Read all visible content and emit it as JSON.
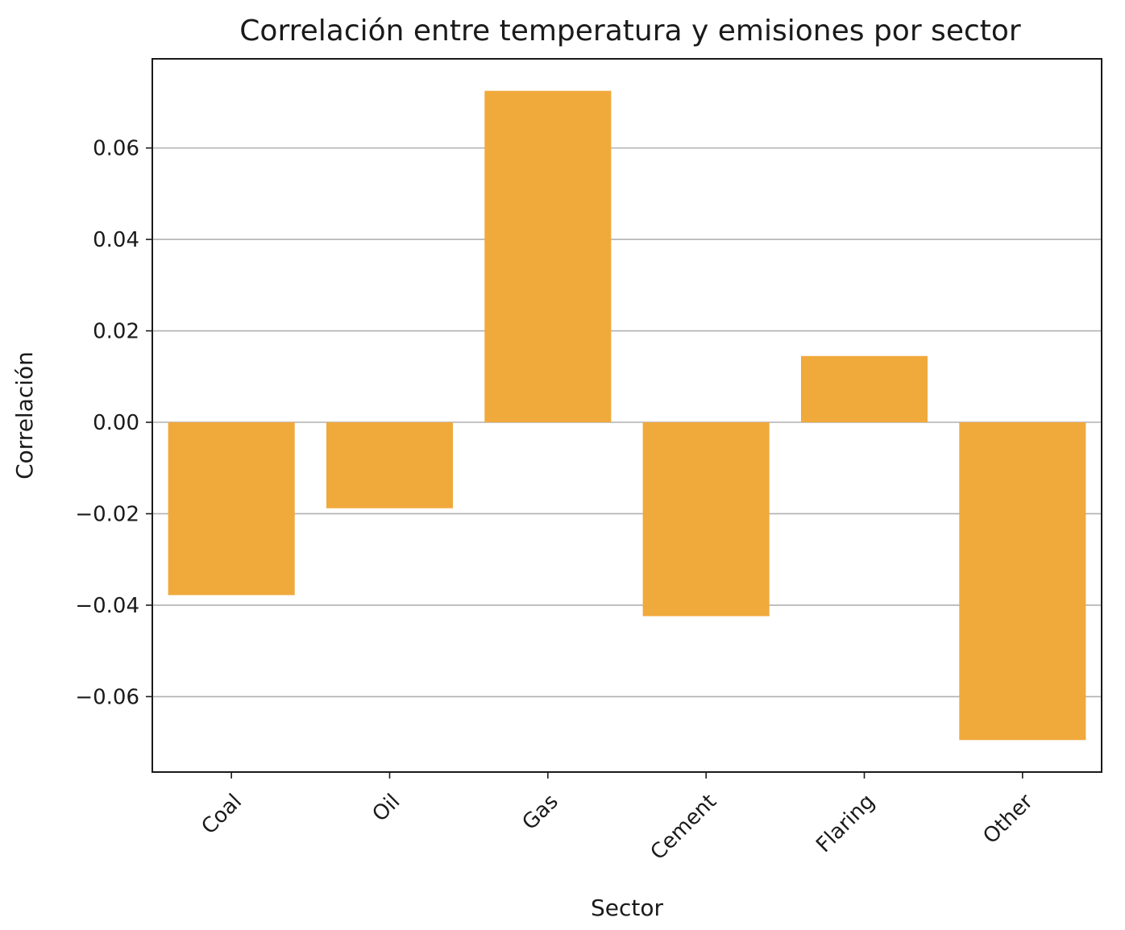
{
  "chart_data": {
    "type": "bar",
    "title": "Correlación entre temperatura y emisiones por sector",
    "xlabel": "Sector",
    "ylabel": "Correlación",
    "categories": [
      "Coal",
      "Oil",
      "Gas",
      "Cement",
      "Flaring",
      "Other"
    ],
    "values": [
      -0.0378,
      -0.0188,
      0.0725,
      -0.0424,
      0.0145,
      -0.0695
    ],
    "ylim": [
      -0.0765,
      0.0795
    ],
    "yticks": [
      -0.06,
      -0.04,
      -0.02,
      0.0,
      0.02,
      0.04,
      0.06
    ],
    "ytick_labels": [
      "−0.06",
      "−0.04",
      "−0.02",
      "0.00",
      "0.02",
      "0.04",
      "0.06"
    ],
    "grid": "y",
    "bar_color": "#f0a93b",
    "xtick_rotation": 45
  }
}
